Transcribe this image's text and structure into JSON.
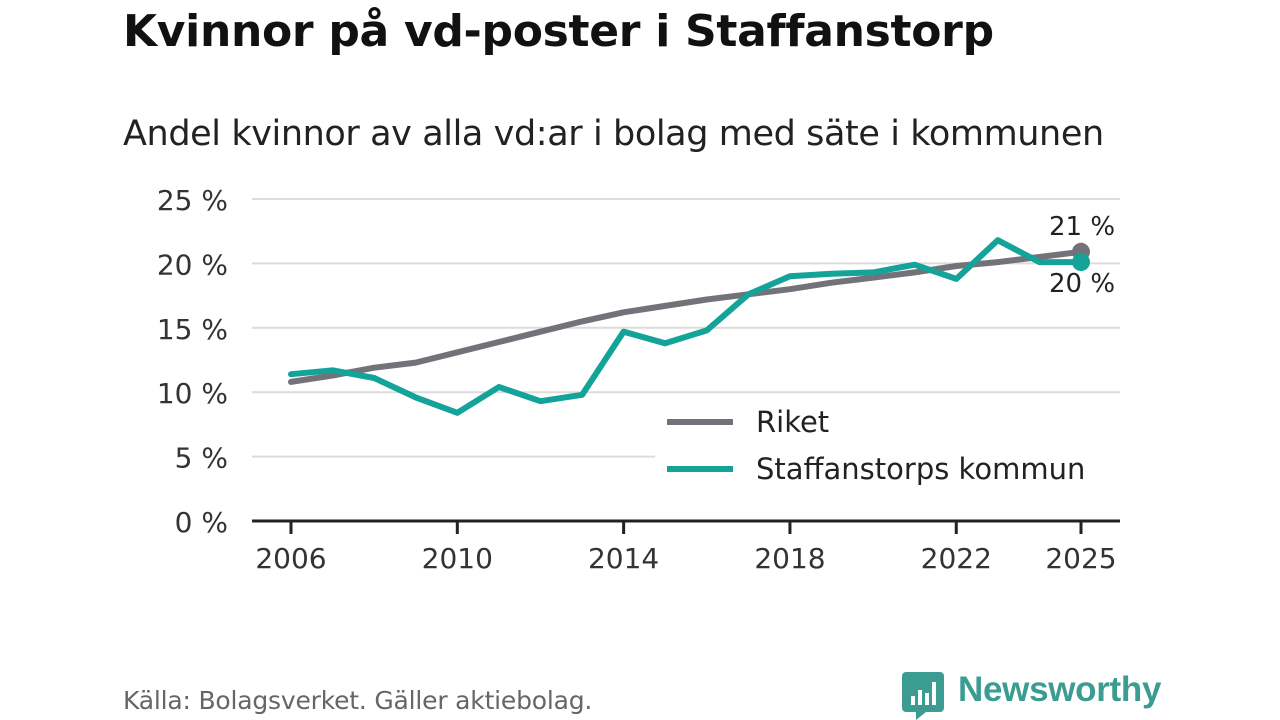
{
  "title": "Kvinnor på vd-poster i Staffanstorp",
  "subtitle": "Andel kvinnor av alla vd:ar i bolag med säte i kommunen",
  "source": "Källa: Bolagsverket. Gäller aktiebolag.",
  "brand": {
    "name": "Newsworthy",
    "icon": "bar-chart-speech-bubble-icon",
    "color": "#3b9c92"
  },
  "chart_data": {
    "type": "line",
    "x": [
      2006,
      2007,
      2008,
      2009,
      2010,
      2011,
      2012,
      2013,
      2014,
      2015,
      2016,
      2017,
      2018,
      2019,
      2020,
      2021,
      2022,
      2023,
      2024,
      2025
    ],
    "series": [
      {
        "name": "Riket",
        "color": "#737278",
        "values": [
          10.8,
          11.3,
          11.9,
          12.3,
          13.1,
          13.9,
          14.7,
          15.5,
          16.2,
          16.7,
          17.2,
          17.6,
          18.0,
          18.5,
          18.9,
          19.3,
          19.8,
          20.1,
          20.5,
          20.9
        ],
        "end_label": "21 %"
      },
      {
        "name": "Staffanstorps kommun",
        "color": "#14a398",
        "values": [
          11.4,
          11.7,
          11.1,
          9.6,
          8.4,
          10.4,
          9.3,
          9.8,
          14.7,
          13.8,
          14.8,
          17.6,
          19.0,
          19.2,
          19.3,
          19.9,
          18.8,
          21.8,
          20.1,
          20.1
        ],
        "end_label": "20 %"
      }
    ],
    "ylim": [
      0,
      25
    ],
    "yticks": [
      0,
      5,
      10,
      15,
      20,
      25
    ],
    "ytick_labels": [
      "0 %",
      "5 %",
      "10 %",
      "15 %",
      "20 %",
      "25 %"
    ],
    "xticks": [
      2006,
      2010,
      2014,
      2018,
      2022,
      2025
    ],
    "xtick_labels": [
      "2006",
      "2010",
      "2014",
      "2018",
      "2022",
      "2025"
    ],
    "grid": true,
    "legend": "bottom-right",
    "xlabel": "",
    "ylabel": ""
  }
}
